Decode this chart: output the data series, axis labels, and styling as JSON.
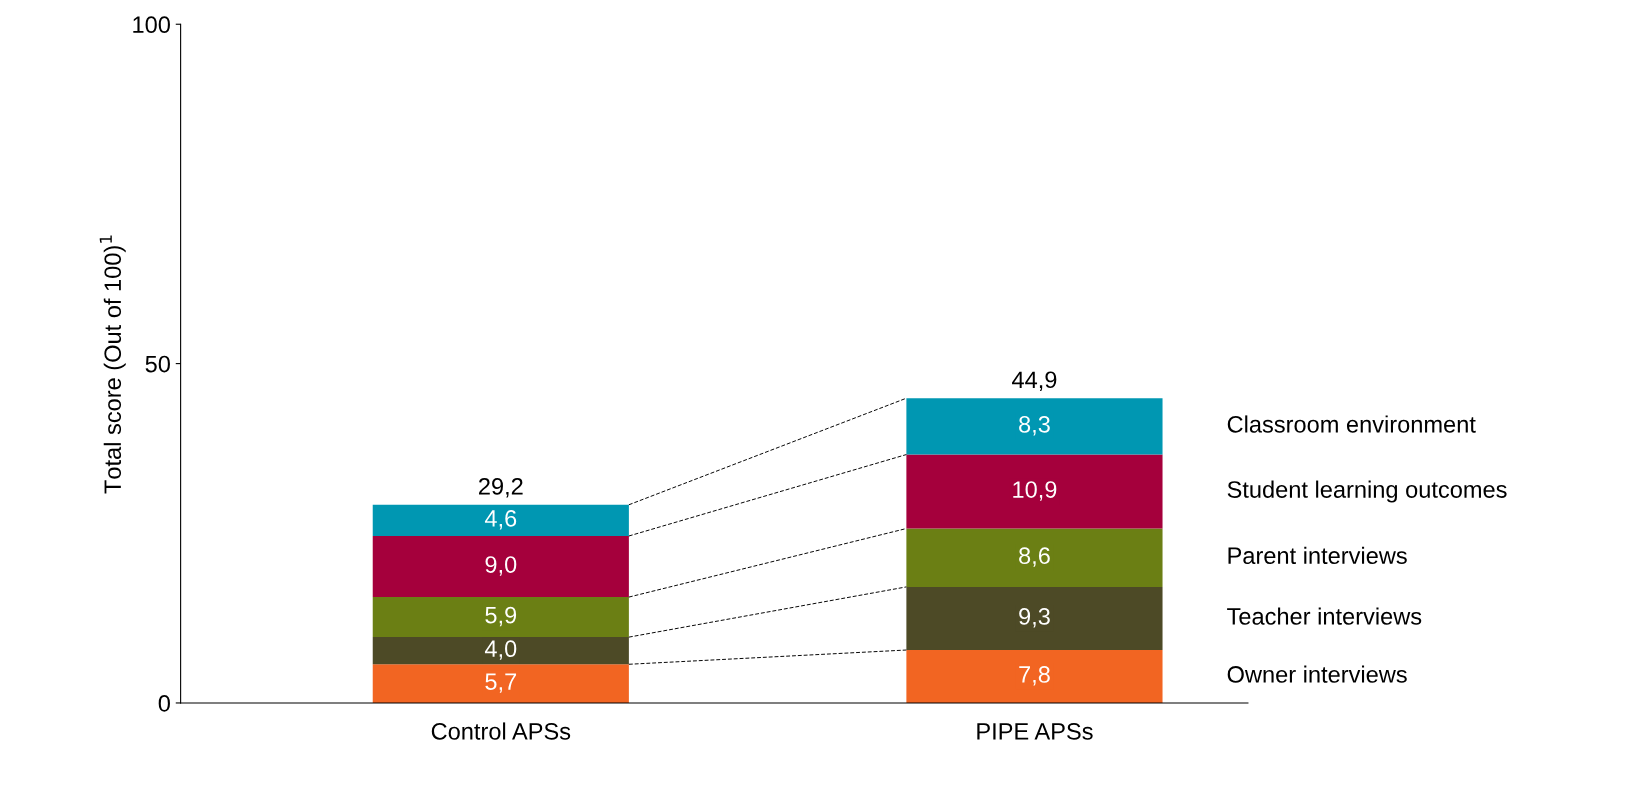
{
  "chart_data": {
    "type": "bar",
    "stacked": true,
    "ylabel": "Total score (Out of 100)$^{1}$",
    "categories": [
      "Control APSs",
      "PIPE APSs"
    ],
    "series": [
      {
        "name": "Owner interviews",
        "color": "#f26522",
        "values": [
          5.7,
          7.8
        ],
        "value_labels": [
          "5,7",
          "7,8"
        ]
      },
      {
        "name": "Teacher interviews",
        "color": "#4d4a26",
        "values": [
          4.0,
          9.3
        ],
        "value_labels": [
          "4,0",
          "9,3"
        ]
      },
      {
        "name": "Parent interviews",
        "color": "#6b7f14",
        "values": [
          5.9,
          8.6
        ],
        "value_labels": [
          "5,9",
          "8,6"
        ]
      },
      {
        "name": "Student learning outcomes",
        "color": "#a5003c",
        "values": [
          9.0,
          10.9
        ],
        "value_labels": [
          "9,0",
          "10,9"
        ]
      },
      {
        "name": "Classroom environment",
        "color": "#0097b2",
        "values": [
          4.6,
          8.3
        ],
        "value_labels": [
          "4,6",
          "8,3"
        ]
      }
    ],
    "totals": [
      "29,2",
      "44,9"
    ],
    "ylim": [
      0,
      100
    ],
    "yticks": [
      0,
      50,
      100
    ],
    "legend": "right",
    "grid": false
  }
}
